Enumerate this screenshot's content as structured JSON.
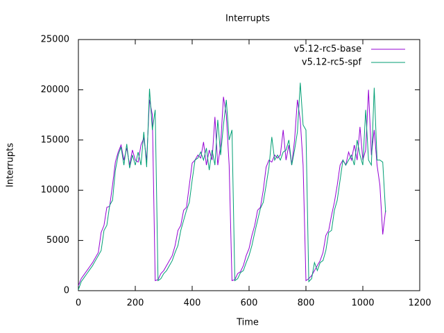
{
  "chart_data": {
    "type": "line",
    "title": "Interrupts",
    "xlabel": "Time",
    "ylabel": "Interrupts",
    "x": [
      0,
      10,
      20,
      30,
      40,
      50,
      60,
      70,
      80,
      90,
      100,
      110,
      120,
      130,
      140,
      150,
      160,
      170,
      180,
      190,
      200,
      210,
      220,
      230,
      240,
      250,
      260,
      270,
      280,
      290,
      300,
      310,
      320,
      330,
      340,
      350,
      360,
      370,
      380,
      390,
      400,
      410,
      420,
      430,
      440,
      450,
      460,
      470,
      480,
      490,
      500,
      510,
      520,
      530,
      540,
      550,
      560,
      570,
      580,
      590,
      600,
      610,
      620,
      630,
      640,
      650,
      660,
      670,
      680,
      690,
      700,
      710,
      720,
      730,
      740,
      750,
      760,
      770,
      780,
      790,
      800,
      810,
      820,
      830,
      840,
      850,
      860,
      870,
      880,
      890,
      900,
      910,
      920,
      930,
      940,
      950,
      960,
      970,
      980,
      990,
      1000,
      1010,
      1020,
      1030,
      1040,
      1050,
      1060,
      1070,
      1080
    ],
    "series": [
      {
        "name": "v5.12-rc5-base",
        "color": "#9400d3",
        "values": [
          500,
          1200,
          1600,
          2000,
          2400,
          2800,
          3300,
          3800,
          5800,
          6500,
          8300,
          8400,
          10500,
          12800,
          13800,
          14500,
          13000,
          14200,
          12500,
          14000,
          13000,
          12800,
          14500,
          15200,
          13000,
          19000,
          17500,
          1000,
          1100,
          1700,
          2000,
          2500,
          3000,
          3500,
          4500,
          6000,
          6500,
          8000,
          8300,
          10500,
          12700,
          13000,
          13500,
          13200,
          14800,
          12500,
          14000,
          13000,
          17300,
          12500,
          14500,
          19300,
          17500,
          12500,
          1000,
          1100,
          1700,
          1900,
          2500,
          3500,
          4200,
          5500,
          6500,
          8000,
          8300,
          10000,
          12300,
          13000,
          12800,
          13500,
          13200,
          13500,
          16000,
          13000,
          14500,
          12500,
          15000,
          19000,
          17000,
          12500,
          1000,
          1200,
          1500,
          2000,
          2500,
          3000,
          3800,
          5500,
          6000,
          7500,
          8800,
          10500,
          12500,
          13000,
          12500,
          13800,
          13000,
          14500,
          13000,
          16300,
          13000,
          14000,
          20000,
          13500,
          16000,
          12500,
          10500,
          5600,
          8000
        ]
      },
      {
        "name": "v5.12-rc5-spf",
        "color": "#009e73",
        "values": [
          100,
          900,
          1300,
          1700,
          2100,
          2500,
          3000,
          3500,
          4000,
          6000,
          6500,
          8500,
          9000,
          12000,
          13500,
          14300,
          12500,
          14600,
          12200,
          13500,
          12500,
          13800,
          12500,
          15800,
          12300,
          20100,
          16000,
          18000,
          1000,
          1200,
          1700,
          2000,
          2500,
          3000,
          3800,
          4500,
          6000,
          7000,
          8000,
          8800,
          11000,
          13000,
          13200,
          13800,
          13000,
          14200,
          12000,
          14000,
          12500,
          17000,
          13500,
          16500,
          19000,
          15000,
          16000,
          1000,
          1200,
          1800,
          2000,
          2800,
          3500,
          4500,
          5800,
          7000,
          8200,
          8800,
          10500,
          12300,
          15300,
          13000,
          13500,
          13000,
          13800,
          14000,
          15000,
          12500,
          14000,
          15800,
          20700,
          16500,
          16000,
          900,
          1200,
          2800,
          2000,
          2800,
          3000,
          4000,
          5800,
          6000,
          8000,
          9000,
          11000,
          13000,
          12500,
          13000,
          13500,
          12500,
          15000,
          13500,
          12500,
          18000,
          13000,
          12500,
          20200,
          13000,
          13000,
          12800,
          7800
        ]
      }
    ],
    "xlim": [
      0,
      1200
    ],
    "xticks": [
      0,
      200,
      400,
      600,
      800,
      1000,
      1200
    ],
    "ylim": [
      0,
      25000
    ],
    "yticks": [
      0,
      5000,
      10000,
      15000,
      20000,
      25000
    ],
    "legend": "top-right"
  }
}
